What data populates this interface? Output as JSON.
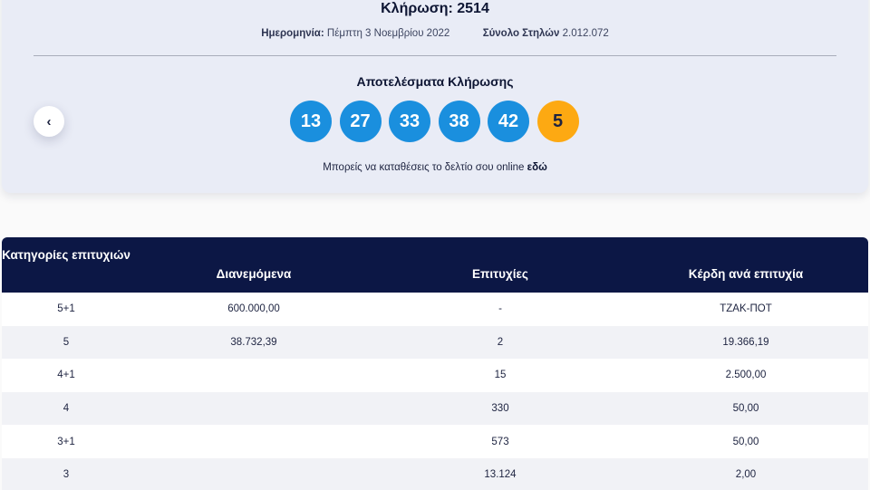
{
  "draw": {
    "title": "Κλήρωση: 2514",
    "date_label": "Ημερομηνία:",
    "date_value": "Πέμπτη 3 Νοεμβρίου 2022",
    "columns_label": "Σύνολο Στηλών",
    "columns_value": "2.012.072",
    "results_heading": "Αποτελέσματα Κλήρωσης",
    "numbers": [
      "13",
      "27",
      "33",
      "38",
      "42"
    ],
    "joker": "5",
    "prev_icon": "‹",
    "online_text": "Μπορείς να καταθέσεις το δελτίο σου online",
    "online_link": "εδώ"
  },
  "colors": {
    "main_ball": "#1a8fde",
    "joker_ball": "#fda912",
    "table_header": "#0c1745"
  },
  "table": {
    "headers": [
      "Κατηγορίες επιτυχιών",
      "Διανεμόμενα",
      "Επιτυχίες",
      "Κέρδη ανά επιτυχία"
    ],
    "rows": [
      [
        "5+1",
        "600.000,00",
        "-",
        "ΤΖΑΚ-ΠΟΤ"
      ],
      [
        "5",
        "38.732,39",
        "2",
        "19.366,19"
      ],
      [
        "4+1",
        "",
        "15",
        "2.500,00"
      ],
      [
        "4",
        "",
        "330",
        "50,00"
      ],
      [
        "3+1",
        "",
        "573",
        "50,00"
      ],
      [
        "3",
        "",
        "13.124",
        "2,00"
      ]
    ]
  }
}
